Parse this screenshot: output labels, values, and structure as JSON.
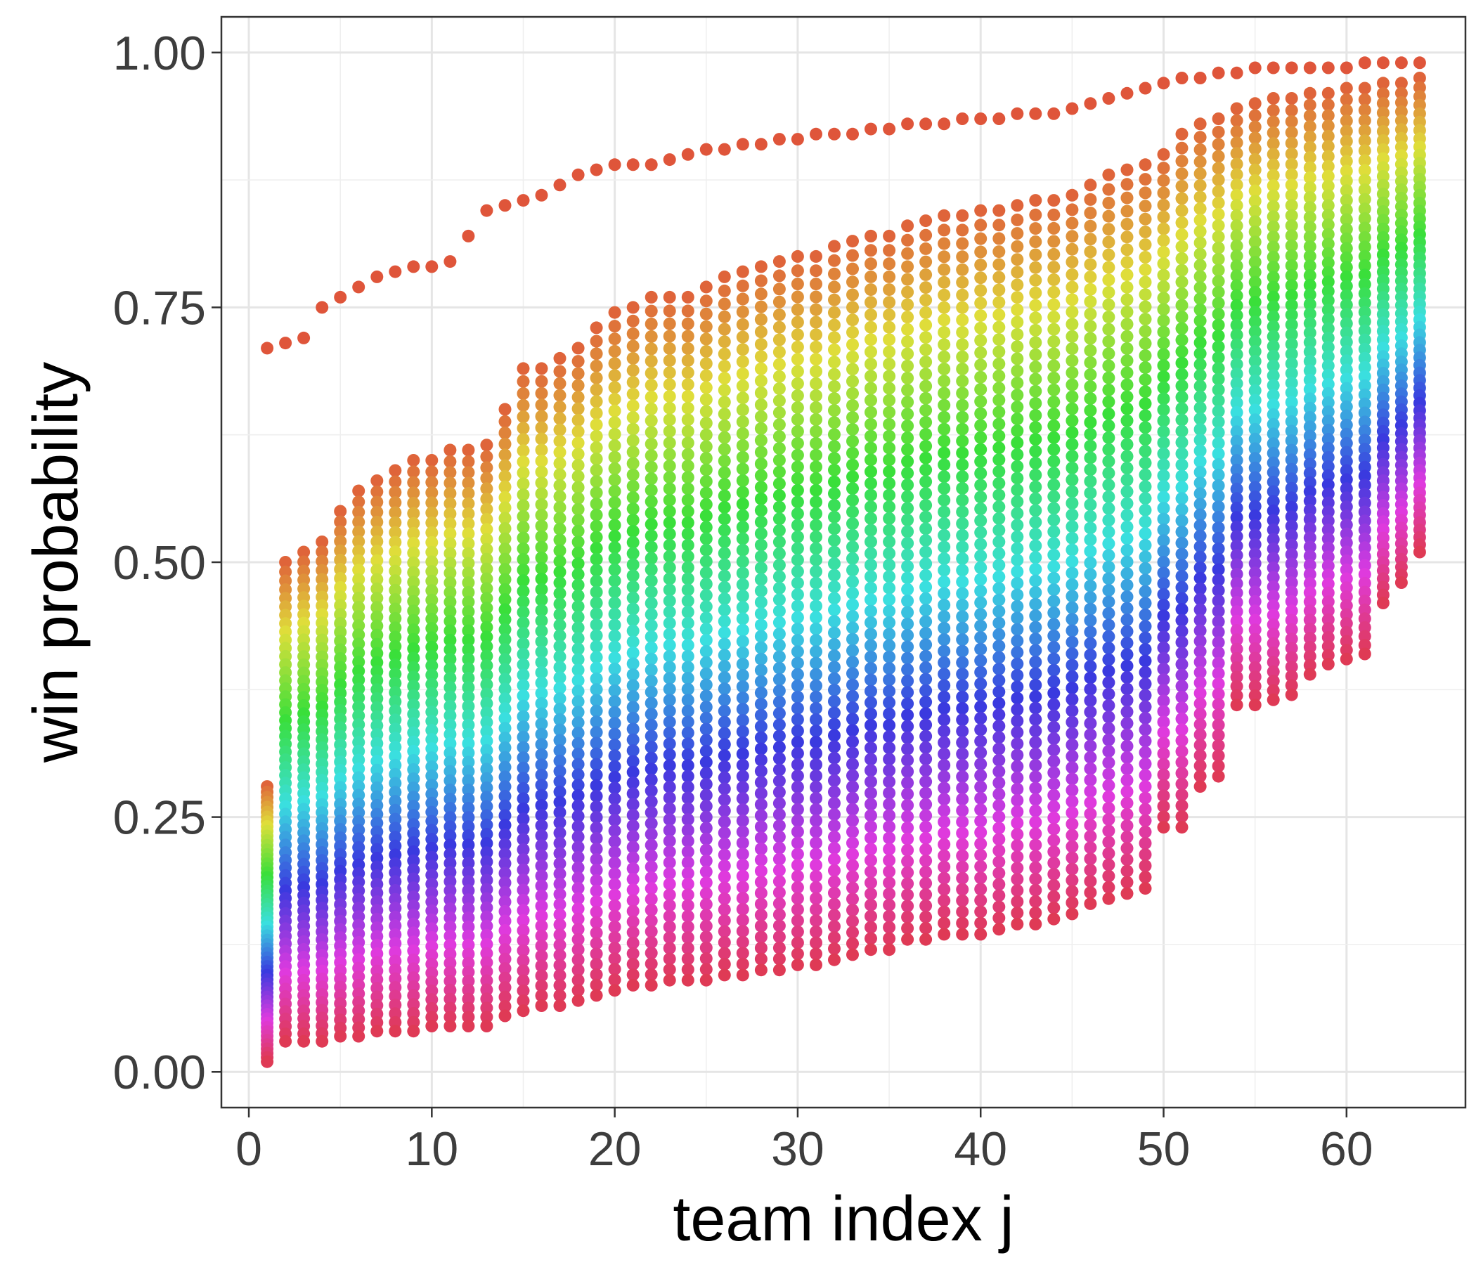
{
  "chart_data": {
    "type": "scatter",
    "xlabel": "team index j",
    "ylabel": "win probability",
    "xlim": [
      -1.5,
      66.5
    ],
    "ylim": [
      -0.035,
      1.035
    ],
    "x_ticks": [
      0,
      10,
      20,
      30,
      40,
      50,
      60
    ],
    "x_tick_labels": [
      "0",
      "10",
      "20",
      "30",
      "40",
      "50",
      "60"
    ],
    "y_ticks": [
      0,
      0.25,
      0.5,
      0.75,
      1
    ],
    "y_tick_labels": [
      "0.00",
      "0.25",
      "0.50",
      "0.75",
      "1.00"
    ],
    "grid": true,
    "legend": "none",
    "team_count": 64,
    "curves_per_team": 63,
    "note": "",
    "top_curve": [
      [
        1,
        0.71
      ],
      [
        2,
        0.715
      ],
      [
        3,
        0.72
      ],
      [
        4,
        0.75
      ],
      [
        5,
        0.76
      ],
      [
        6,
        0.77
      ],
      [
        7,
        0.78
      ],
      [
        8,
        0.785
      ],
      [
        9,
        0.79
      ],
      [
        10,
        0.79
      ],
      [
        11,
        0.795
      ],
      [
        12,
        0.82
      ],
      [
        13,
        0.845
      ],
      [
        14,
        0.85
      ],
      [
        15,
        0.855
      ],
      [
        16,
        0.86
      ],
      [
        17,
        0.87
      ],
      [
        18,
        0.88
      ],
      [
        19,
        0.885
      ],
      [
        20,
        0.89
      ],
      [
        21,
        0.89
      ],
      [
        22,
        0.89
      ],
      [
        23,
        0.895
      ],
      [
        24,
        0.9
      ],
      [
        25,
        0.905
      ],
      [
        26,
        0.905
      ],
      [
        27,
        0.91
      ],
      [
        28,
        0.91
      ],
      [
        29,
        0.915
      ],
      [
        30,
        0.915
      ],
      [
        31,
        0.92
      ],
      [
        32,
        0.92
      ],
      [
        33,
        0.92
      ],
      [
        34,
        0.925
      ],
      [
        35,
        0.925
      ],
      [
        36,
        0.93
      ],
      [
        37,
        0.93
      ],
      [
        38,
        0.93
      ],
      [
        39,
        0.935
      ],
      [
        40,
        0.935
      ],
      [
        41,
        0.935
      ],
      [
        42,
        0.94
      ],
      [
        43,
        0.94
      ],
      [
        44,
        0.94
      ],
      [
        45,
        0.945
      ],
      [
        46,
        0.95
      ],
      [
        47,
        0.955
      ],
      [
        48,
        0.96
      ],
      [
        49,
        0.965
      ],
      [
        50,
        0.97
      ],
      [
        51,
        0.975
      ],
      [
        52,
        0.975
      ],
      [
        53,
        0.98
      ],
      [
        54,
        0.98
      ],
      [
        55,
        0.985
      ],
      [
        56,
        0.985
      ],
      [
        57,
        0.985
      ],
      [
        58,
        0.985
      ],
      [
        59,
        0.985
      ],
      [
        60,
        0.985
      ],
      [
        61,
        0.99
      ],
      [
        62,
        0.99
      ],
      [
        63,
        0.99
      ],
      [
        64,
        0.99
      ]
    ],
    "second_curve": [
      [
        1,
        0.28
      ],
      [
        2,
        0.5
      ],
      [
        3,
        0.51
      ],
      [
        4,
        0.52
      ],
      [
        5,
        0.55
      ],
      [
        6,
        0.57
      ],
      [
        7,
        0.58
      ],
      [
        8,
        0.59
      ],
      [
        9,
        0.6
      ],
      [
        10,
        0.6
      ],
      [
        11,
        0.61
      ],
      [
        12,
        0.61
      ],
      [
        13,
        0.615
      ],
      [
        14,
        0.65
      ],
      [
        15,
        0.69
      ],
      [
        16,
        0.69
      ],
      [
        17,
        0.7
      ],
      [
        18,
        0.71
      ],
      [
        19,
        0.73
      ],
      [
        20,
        0.745
      ],
      [
        21,
        0.75
      ],
      [
        22,
        0.76
      ],
      [
        23,
        0.76
      ],
      [
        24,
        0.76
      ],
      [
        25,
        0.77
      ],
      [
        26,
        0.78
      ],
      [
        27,
        0.785
      ],
      [
        28,
        0.79
      ],
      [
        29,
        0.795
      ],
      [
        30,
        0.8
      ],
      [
        31,
        0.8
      ],
      [
        32,
        0.81
      ],
      [
        33,
        0.815
      ],
      [
        34,
        0.82
      ],
      [
        35,
        0.82
      ],
      [
        36,
        0.83
      ],
      [
        37,
        0.835
      ],
      [
        38,
        0.84
      ],
      [
        39,
        0.84
      ],
      [
        40,
        0.845
      ],
      [
        41,
        0.845
      ],
      [
        42,
        0.85
      ],
      [
        43,
        0.855
      ],
      [
        44,
        0.855
      ],
      [
        45,
        0.86
      ],
      [
        46,
        0.87
      ],
      [
        47,
        0.88
      ],
      [
        48,
        0.885
      ],
      [
        49,
        0.89
      ],
      [
        50,
        0.9
      ],
      [
        51,
        0.92
      ],
      [
        52,
        0.93
      ],
      [
        53,
        0.935
      ],
      [
        54,
        0.945
      ],
      [
        55,
        0.95
      ],
      [
        56,
        0.955
      ],
      [
        57,
        0.955
      ],
      [
        58,
        0.96
      ],
      [
        59,
        0.96
      ],
      [
        60,
        0.965
      ],
      [
        61,
        0.965
      ],
      [
        62,
        0.97
      ],
      [
        63,
        0.97
      ],
      [
        64,
        0.975
      ]
    ],
    "bottom_curve": [
      [
        1,
        0.01
      ],
      [
        2,
        0.03
      ],
      [
        3,
        0.03
      ],
      [
        4,
        0.03
      ],
      [
        5,
        0.035
      ],
      [
        6,
        0.035
      ],
      [
        7,
        0.04
      ],
      [
        8,
        0.04
      ],
      [
        9,
        0.04
      ],
      [
        10,
        0.045
      ],
      [
        11,
        0.045
      ],
      [
        12,
        0.045
      ],
      [
        13,
        0.045
      ],
      [
        14,
        0.055
      ],
      [
        15,
        0.06
      ],
      [
        16,
        0.065
      ],
      [
        17,
        0.065
      ],
      [
        18,
        0.07
      ],
      [
        19,
        0.075
      ],
      [
        20,
        0.08
      ],
      [
        21,
        0.085
      ],
      [
        22,
        0.085
      ],
      [
        23,
        0.09
      ],
      [
        24,
        0.09
      ],
      [
        25,
        0.09
      ],
      [
        26,
        0.095
      ],
      [
        27,
        0.095
      ],
      [
        28,
        0.1
      ],
      [
        29,
        0.1
      ],
      [
        30,
        0.105
      ],
      [
        31,
        0.105
      ],
      [
        32,
        0.11
      ],
      [
        33,
        0.115
      ],
      [
        34,
        0.12
      ],
      [
        35,
        0.12
      ],
      [
        36,
        0.13
      ],
      [
        37,
        0.13
      ],
      [
        38,
        0.135
      ],
      [
        39,
        0.135
      ],
      [
        40,
        0.135
      ],
      [
        41,
        0.14
      ],
      [
        42,
        0.145
      ],
      [
        43,
        0.145
      ],
      [
        44,
        0.15
      ],
      [
        45,
        0.155
      ],
      [
        46,
        0.165
      ],
      [
        47,
        0.17
      ],
      [
        48,
        0.175
      ],
      [
        49,
        0.18
      ],
      [
        50,
        0.24
      ],
      [
        51,
        0.24
      ],
      [
        52,
        0.28
      ],
      [
        53,
        0.29
      ],
      [
        54,
        0.36
      ],
      [
        55,
        0.36
      ],
      [
        56,
        0.365
      ],
      [
        57,
        0.37
      ],
      [
        58,
        0.39
      ],
      [
        59,
        0.4
      ],
      [
        60,
        0.405
      ],
      [
        61,
        0.41
      ],
      [
        62,
        0.46
      ],
      [
        63,
        0.48
      ],
      [
        64,
        0.51
      ]
    ]
  }
}
